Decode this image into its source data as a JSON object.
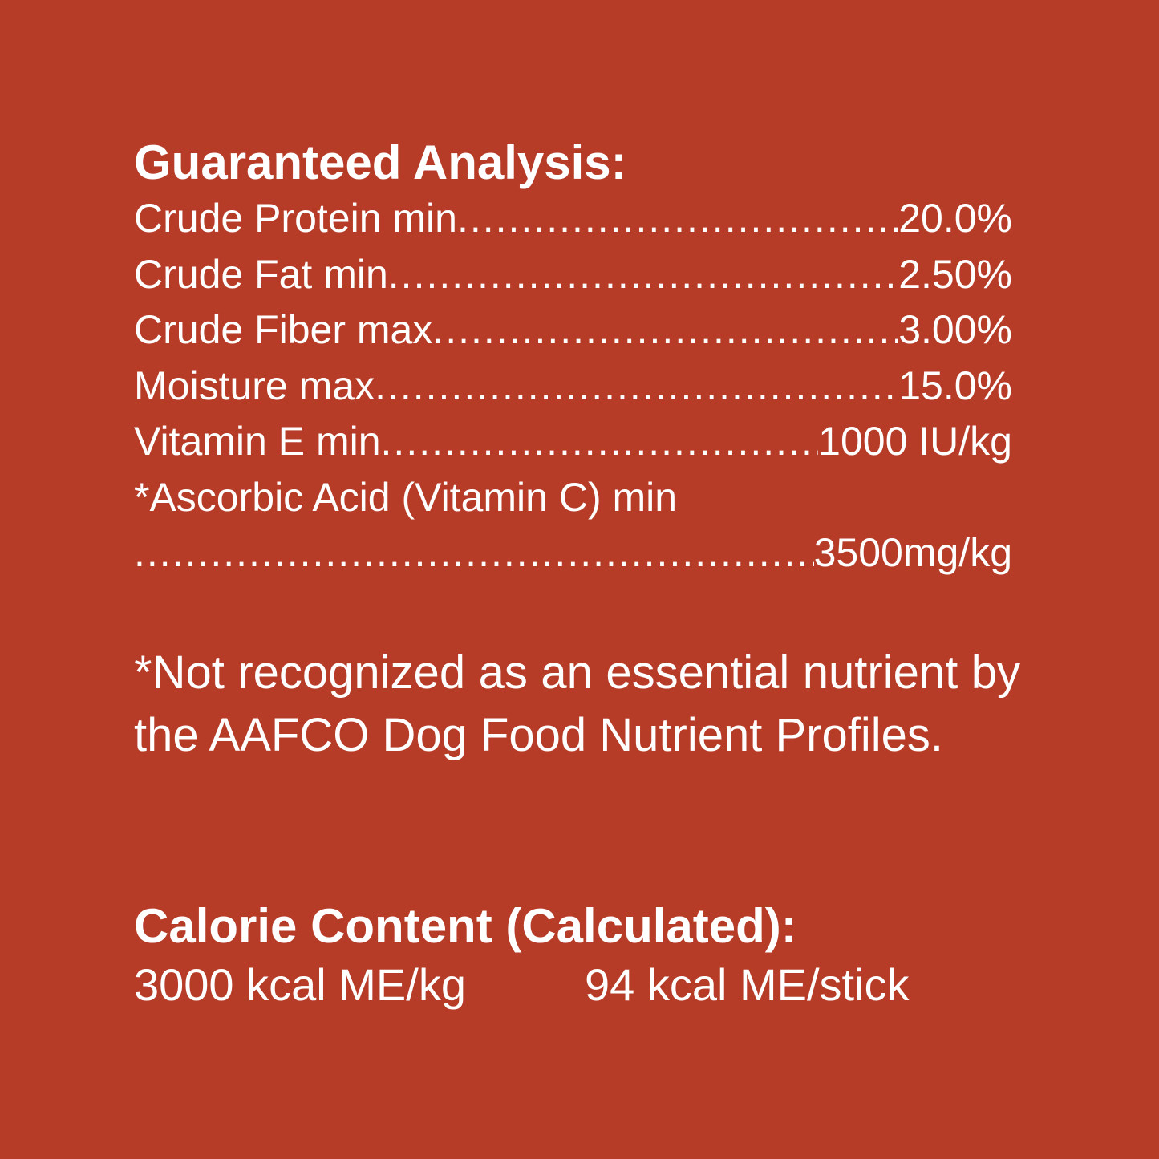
{
  "analysis": {
    "title": "Guaranteed Analysis:",
    "rows": [
      {
        "label": "Crude Protein min",
        "value": "20.0%"
      },
      {
        "label": "Crude Fat min",
        "value": "2.50%"
      },
      {
        "label": "Crude Fiber max",
        "value": "3.00%"
      },
      {
        "label": "Moisture max",
        "value": "15.0%"
      },
      {
        "label": "Vitamin E min",
        "value": "1000 IU/kg"
      }
    ],
    "wrapped_row": {
      "label": "*Ascorbic Acid (Vitamin C) min",
      "value": "3500mg/kg"
    }
  },
  "footnote": "*Not recognized as an essential nutrient by the AAFCO Dog Food Nutrient Profiles.",
  "calorie": {
    "title": "Calorie Content (Calculated):",
    "per_kg": "3000 kcal ME/kg",
    "per_stick": "94 kcal ME/stick"
  },
  "colors": {
    "background": "#B63C28",
    "text": "#FFFFFF"
  }
}
